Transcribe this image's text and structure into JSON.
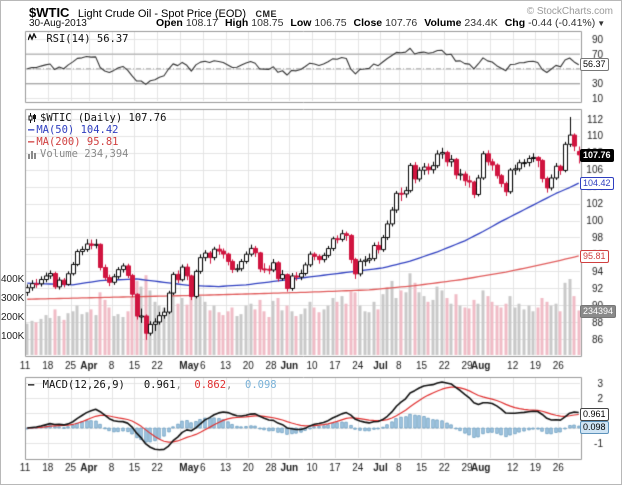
{
  "header": {
    "symbol": "$WTIC",
    "title": "Light Crude Oil - Spot Price (EOD)",
    "exchange": "CME",
    "copyright": "© StockCharts.com",
    "date": "30-Aug-2013",
    "fields": [
      {
        "label": "Open",
        "value": "108.17"
      },
      {
        "label": "High",
        "value": "108.75"
      },
      {
        "label": "Low",
        "value": "106.75"
      },
      {
        "label": "Close",
        "value": "107.76"
      },
      {
        "label": "Volume",
        "value": "234.4K"
      },
      {
        "label": "Chg",
        "value": "-0.44 (-0.41%)",
        "arrow": "down"
      }
    ]
  },
  "rsi_panel": {
    "legend": "RSI(14) 56.37",
    "bubble": "56.37"
  },
  "main_panel": {
    "legend_symbol": "$WTIC (Daily) 107.76",
    "legend_ma50": "MA(50) 104.42",
    "legend_ma200": "MA(200) 95.81",
    "legend_volume": "Volume 234,394",
    "bubble_close": "107.76",
    "bubble_ma50": "104.42",
    "bubble_ma200": "95.81",
    "bubble_volume": "234394",
    "vol_ticks": [
      "400K",
      "300K",
      "200K",
      "100K"
    ]
  },
  "macd_panel": {
    "legend_label": "MACD(12,26,9)",
    "v1": "0.961",
    "v2": "0.862",
    "v3": "0.098",
    "bubble_line": "0.961",
    "bubble_hist": "0.098"
  },
  "colors": {
    "up": "#000000",
    "up_fill": "#ffffff",
    "down": "#d0143f",
    "ma50": "#2f3fc0",
    "ma200": "#e05c5c",
    "vol_up": "#c9c9c9",
    "vol_down": "#f0bcc6",
    "rsi_line": "#333333",
    "rsi_bands": "#a0a0a0",
    "macd_line": "#111111",
    "macd_signal": "#e03030",
    "macd_hist_fill": "#a9cbe6",
    "macd_hist_stroke": "#6699bb",
    "grid": "#e4e4e4",
    "panel_border": "#999999",
    "axis_text": "#222222"
  },
  "chart_data": {
    "type": "candlestick",
    "symbol": "$WTIC",
    "timeframe": "Daily",
    "last_close": 107.76,
    "price_axis": {
      "min": 86,
      "max": 112,
      "step": 2,
      "ticks": [
        112,
        110,
        108,
        106,
        104,
        102,
        100,
        98,
        96,
        94,
        92,
        90,
        88,
        86
      ]
    },
    "volume_axis": {
      "ticks_k": [
        400,
        300,
        200,
        100
      ],
      "last": 234394
    },
    "rsi": {
      "period": 14,
      "last": 56.37,
      "ticks": [
        90,
        70,
        30,
        10
      ],
      "overbought": 70,
      "oversold": 30,
      "mid": 50
    },
    "macd": {
      "fast": 12,
      "slow": 26,
      "signal_period": 9,
      "last": 0.961,
      "signal_last": 0.862,
      "hist_last": 0.098,
      "ticks": [
        3,
        2,
        1,
        0,
        -1
      ]
    },
    "ma50": {
      "period": 50,
      "last": 104.42,
      "keypoints": [
        [
          0,
          92.6
        ],
        [
          10,
          92.4
        ],
        [
          16,
          92.9
        ],
        [
          24,
          93.1
        ],
        [
          30,
          92.7
        ],
        [
          36,
          92.3
        ],
        [
          42,
          92.2
        ],
        [
          48,
          92.4
        ],
        [
          54,
          92.8
        ],
        [
          60,
          93.2
        ],
        [
          66,
          93.6
        ],
        [
          72,
          94.0
        ],
        [
          78,
          94.4
        ],
        [
          84,
          95.2
        ],
        [
          90,
          96.3
        ],
        [
          96,
          97.6
        ],
        [
          100,
          98.7
        ],
        [
          104,
          99.9
        ],
        [
          108,
          101.0
        ],
        [
          112,
          102.1
        ],
        [
          116,
          103.2
        ],
        [
          119,
          103.9
        ],
        [
          121,
          104.42
        ]
      ]
    },
    "ma200": {
      "period": 200,
      "last": 95.81,
      "keypoints": [
        [
          0,
          90.7
        ],
        [
          20,
          90.95
        ],
        [
          40,
          91.2
        ],
        [
          60,
          91.5
        ],
        [
          75,
          91.8
        ],
        [
          85,
          92.3
        ],
        [
          95,
          93.0
        ],
        [
          105,
          93.9
        ],
        [
          112,
          94.7
        ],
        [
          117,
          95.3
        ],
        [
          121,
          95.81
        ]
      ]
    },
    "x_week_start_indices": [
      0,
      5,
      10,
      14,
      19,
      24,
      29,
      34,
      39,
      44,
      49,
      54,
      58,
      63,
      68,
      73,
      78,
      82,
      87,
      92,
      97,
      102,
      107,
      112,
      117
    ],
    "x_labels": [
      {
        "i": 0,
        "t": "11"
      },
      {
        "i": 5,
        "t": "18"
      },
      {
        "i": 10,
        "t": "25"
      },
      {
        "i": 14,
        "t": "Apr",
        "m": true
      },
      {
        "i": 19,
        "t": "8"
      },
      {
        "i": 24,
        "t": "15"
      },
      {
        "i": 29,
        "t": "22"
      },
      {
        "i": 36,
        "t": "May",
        "m": true
      },
      {
        "i": 39,
        "t": "6"
      },
      {
        "i": 44,
        "t": "13"
      },
      {
        "i": 49,
        "t": "20"
      },
      {
        "i": 54,
        "t": "28"
      },
      {
        "i": 58,
        "t": "Jun",
        "m": true
      },
      {
        "i": 63,
        "t": "10"
      },
      {
        "i": 68,
        "t": "17"
      },
      {
        "i": 73,
        "t": "24"
      },
      {
        "i": 78,
        "t": "Jul",
        "m": true
      },
      {
        "i": 82,
        "t": "8"
      },
      {
        "i": 87,
        "t": "15"
      },
      {
        "i": 92,
        "t": "22"
      },
      {
        "i": 97,
        "t": "29"
      },
      {
        "i": 100,
        "t": "Aug",
        "m": true
      },
      {
        "i": 107,
        "t": "12"
      },
      {
        "i": 112,
        "t": "19"
      },
      {
        "i": 117,
        "t": "26"
      }
    ],
    "ohlc": [
      [
        91.5,
        92.45,
        91.1,
        92.06
      ],
      [
        92.06,
        92.95,
        91.7,
        92.54
      ],
      [
        92.54,
        93.1,
        92.05,
        92.52
      ],
      [
        92.52,
        93.4,
        92.2,
        93.03
      ],
      [
        93.03,
        93.85,
        92.7,
        93.45
      ],
      [
        93.45,
        94.1,
        93.1,
        93.74
      ],
      [
        93.74,
        93.95,
        91.9,
        92.16
      ],
      [
        92.16,
        93.3,
        91.85,
        92.96
      ],
      [
        92.96,
        93.2,
        92.1,
        92.45
      ],
      [
        92.45,
        94.0,
        92.3,
        93.71
      ],
      [
        93.71,
        95.1,
        93.5,
        94.81
      ],
      [
        94.81,
        96.6,
        94.6,
        96.34
      ],
      [
        96.34,
        96.95,
        95.9,
        96.58
      ],
      [
        96.58,
        97.8,
        96.3,
        97.23
      ],
      [
        97.23,
        97.75,
        96.6,
        97.07
      ],
      [
        97.07,
        97.8,
        96.7,
        97.19
      ],
      [
        97.19,
        97.3,
        94.1,
        94.45
      ],
      [
        94.45,
        94.8,
        92.95,
        93.26
      ],
      [
        93.26,
        93.6,
        92.25,
        92.7
      ],
      [
        92.7,
        93.7,
        92.4,
        93.36
      ],
      [
        93.36,
        94.5,
        93.1,
        94.2
      ],
      [
        94.2,
        94.95,
        93.85,
        94.64
      ],
      [
        94.64,
        94.9,
        93.2,
        93.51
      ],
      [
        93.51,
        93.7,
        90.95,
        91.29
      ],
      [
        91.29,
        91.4,
        88.3,
        88.71
      ],
      [
        88.71,
        89.6,
        87.9,
        88.72
      ],
      [
        88.72,
        88.9,
        85.9,
        86.68
      ],
      [
        86.68,
        88.1,
        86.4,
        87.73
      ],
      [
        87.73,
        88.45,
        86.95,
        88.01
      ],
      [
        88.01,
        89.2,
        87.7,
        88.76
      ],
      [
        88.76,
        89.7,
        88.4,
        89.18
      ],
      [
        89.18,
        91.7,
        88.95,
        91.43
      ],
      [
        91.43,
        93.9,
        91.2,
        93.64
      ],
      [
        93.64,
        94.1,
        92.6,
        93.0
      ],
      [
        93.0,
        94.8,
        92.8,
        94.5
      ],
      [
        94.5,
        94.9,
        92.95,
        93.46
      ],
      [
        93.46,
        93.6,
        90.6,
        91.03
      ],
      [
        91.03,
        94.2,
        90.8,
        93.99
      ],
      [
        93.99,
        96.0,
        93.7,
        95.61
      ],
      [
        95.61,
        96.5,
        95.2,
        96.16
      ],
      [
        96.16,
        96.4,
        94.9,
        95.62
      ],
      [
        95.62,
        96.9,
        95.3,
        96.62
      ],
      [
        96.62,
        97.15,
        95.95,
        96.39
      ],
      [
        96.39,
        96.7,
        95.5,
        96.04
      ],
      [
        96.04,
        96.2,
        94.7,
        95.17
      ],
      [
        95.17,
        95.4,
        93.8,
        94.21
      ],
      [
        94.21,
        94.85,
        93.9,
        94.3
      ],
      [
        94.3,
        95.45,
        94.0,
        95.16
      ],
      [
        95.16,
        96.35,
        94.9,
        96.02
      ],
      [
        96.02,
        97.15,
        95.75,
        96.71
      ],
      [
        96.71,
        97.0,
        95.7,
        96.18
      ],
      [
        96.18,
        96.3,
        93.9,
        94.28
      ],
      [
        94.28,
        94.95,
        93.8,
        94.25
      ],
      [
        94.25,
        94.7,
        93.65,
        94.15
      ],
      [
        94.15,
        95.45,
        93.9,
        95.01
      ],
      [
        95.01,
        95.2,
        92.8,
        93.13
      ],
      [
        93.13,
        94.15,
        92.9,
        93.61
      ],
      [
        93.61,
        93.75,
        91.6,
        91.97
      ],
      [
        91.97,
        93.8,
        91.7,
        93.45
      ],
      [
        93.45,
        93.9,
        92.9,
        93.31
      ],
      [
        93.31,
        94.2,
        92.95,
        93.74
      ],
      [
        93.74,
        95.05,
        93.5,
        94.76
      ],
      [
        94.76,
        96.35,
        94.5,
        96.03
      ],
      [
        96.03,
        96.25,
        95.3,
        95.77
      ],
      [
        95.77,
        96.0,
        94.9,
        95.38
      ],
      [
        95.38,
        96.2,
        95.05,
        95.88
      ],
      [
        95.88,
        97.0,
        95.6,
        96.69
      ],
      [
        96.69,
        98.1,
        96.4,
        97.85
      ],
      [
        97.85,
        98.25,
        97.3,
        97.77
      ],
      [
        97.77,
        98.9,
        97.5,
        98.44
      ],
      [
        98.44,
        98.7,
        97.6,
        98.24
      ],
      [
        98.24,
        98.4,
        94.95,
        95.4
      ],
      [
        95.4,
        95.6,
        93.1,
        93.69
      ],
      [
        93.69,
        95.5,
        93.4,
        95.18
      ],
      [
        95.18,
        95.8,
        94.6,
        95.32
      ],
      [
        95.32,
        96.1,
        94.95,
        95.5
      ],
      [
        95.5,
        97.4,
        95.2,
        97.05
      ],
      [
        97.05,
        97.5,
        96.1,
        96.56
      ],
      [
        96.56,
        98.3,
        96.3,
        97.99
      ],
      [
        97.99,
        100.0,
        97.7,
        99.6
      ],
      [
        99.6,
        101.6,
        99.3,
        101.24
      ],
      [
        101.24,
        103.5,
        100.9,
        103.22
      ],
      [
        103.22,
        103.9,
        102.3,
        103.14
      ],
      [
        103.14,
        104.0,
        102.7,
        103.53
      ],
      [
        103.53,
        106.8,
        103.3,
        106.52
      ],
      [
        106.52,
        106.9,
        104.4,
        104.91
      ],
      [
        104.91,
        106.3,
        104.6,
        105.95
      ],
      [
        105.95,
        106.8,
        105.4,
        106.32
      ],
      [
        106.32,
        106.75,
        105.45,
        106.0
      ],
      [
        106.0,
        106.95,
        105.55,
        106.48
      ],
      [
        106.48,
        108.3,
        106.2,
        107.87
      ],
      [
        107.87,
        108.6,
        107.3,
        108.05
      ],
      [
        108.05,
        108.25,
        106.4,
        106.94
      ],
      [
        106.94,
        107.75,
        106.35,
        107.23
      ],
      [
        107.23,
        107.4,
        104.9,
        105.39
      ],
      [
        105.39,
        106.1,
        104.75,
        105.49
      ],
      [
        105.49,
        105.8,
        104.1,
        104.7
      ],
      [
        104.7,
        105.3,
        103.9,
        104.55
      ],
      [
        104.55,
        104.7,
        102.65,
        103.08
      ],
      [
        103.08,
        105.4,
        102.85,
        105.03
      ],
      [
        105.03,
        108.2,
        104.8,
        107.89
      ],
      [
        107.89,
        108.3,
        106.5,
        106.94
      ],
      [
        106.94,
        107.3,
        105.9,
        106.56
      ],
      [
        106.56,
        106.75,
        104.95,
        105.3
      ],
      [
        105.3,
        105.5,
        103.95,
        104.37
      ],
      [
        104.37,
        104.6,
        102.9,
        103.4
      ],
      [
        103.4,
        106.2,
        103.15,
        105.97
      ],
      [
        105.97,
        106.6,
        105.4,
        106.11
      ],
      [
        106.11,
        107.2,
        105.8,
        106.83
      ],
      [
        106.83,
        107.25,
        106.3,
        106.85
      ],
      [
        106.85,
        107.7,
        106.4,
        107.33
      ],
      [
        107.33,
        107.95,
        106.9,
        107.46
      ],
      [
        107.46,
        107.6,
        106.3,
        107.1
      ],
      [
        107.1,
        107.25,
        104.5,
        104.96
      ],
      [
        104.96,
        105.2,
        103.3,
        103.85
      ],
      [
        103.85,
        105.45,
        103.55,
        105.03
      ],
      [
        105.03,
        106.8,
        104.8,
        106.42
      ],
      [
        106.42,
        106.6,
        105.4,
        105.92
      ],
      [
        105.92,
        109.3,
        105.7,
        109.01
      ],
      [
        109.01,
        112.24,
        108.7,
        110.1
      ],
      [
        110.1,
        110.3,
        108.2,
        108.8
      ],
      [
        108.17,
        108.75,
        106.75,
        107.76
      ]
    ],
    "volume_k": [
      165,
      180,
      172,
      190,
      210,
      195,
      240,
      205,
      185,
      220,
      230,
      260,
      215,
      225,
      240,
      210,
      330,
      290,
      250,
      205,
      215,
      200,
      230,
      310,
      390,
      360,
      420,
      340,
      280,
      260,
      250,
      320,
      345,
      270,
      300,
      265,
      350,
      330,
      310,
      280,
      235,
      260,
      225,
      210,
      230,
      250,
      205,
      215,
      260,
      270,
      240,
      290,
      230,
      200,
      285,
      300,
      235,
      260,
      230,
      205,
      215,
      245,
      280,
      250,
      225,
      240,
      260,
      300,
      280,
      310,
      270,
      335,
      330,
      260,
      230,
      225,
      280,
      240,
      320,
      355,
      390,
      300,
      340,
      330,
      430,
      380,
      330,
      310,
      280,
      290,
      360,
      340,
      300,
      270,
      320,
      260,
      250,
      245,
      290,
      270,
      340,
      310,
      280,
      260,
      250,
      270,
      310,
      250,
      270,
      240,
      260,
      230,
      250,
      300,
      280,
      260,
      270,
      230,
      380,
      400,
      310,
      234.394
    ]
  }
}
